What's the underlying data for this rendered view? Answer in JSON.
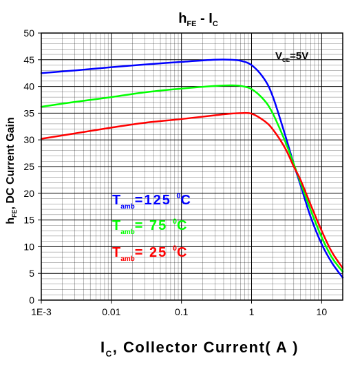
{
  "chart_data": {
    "type": "line",
    "title": {
      "main": "h",
      "main_sub": "FE",
      "sep": " - ",
      "second": "I",
      "second_sub": "C"
    },
    "xlabel": {
      "main": "I",
      "sub": "C",
      "rest": ",  Collector  Current( A )"
    },
    "ylabel": {
      "main": "h",
      "sub": "FE",
      "rest": ", DC Current Gain"
    },
    "x_scale": "log",
    "xlim": [
      0.001,
      20
    ],
    "ylim": [
      0,
      50
    ],
    "x_ticks": [
      0.001,
      0.01,
      0.1,
      1,
      10
    ],
    "x_tick_labels": [
      "1E-3",
      "0.01",
      "0.1",
      "1",
      "10"
    ],
    "y_ticks": [
      0,
      5,
      10,
      15,
      20,
      25,
      30,
      35,
      40,
      45,
      50
    ],
    "y_tick_labels": [
      "0",
      "5",
      "10",
      "15",
      "20",
      "25",
      "30",
      "35",
      "40",
      "45",
      "50"
    ],
    "grid": true,
    "annotation": {
      "main": "V",
      "sub": "CE",
      "rest": "=5V"
    },
    "legend_placement": "inside-left",
    "series": [
      {
        "name": "T_amb=125 0C",
        "label": {
          "main": "T",
          "sub": "amb",
          "mid": "=125 ",
          "sup": "0",
          "end": "C"
        },
        "color": "#0000ff",
        "x": [
          0.001,
          0.003,
          0.01,
          0.03,
          0.1,
          0.3,
          0.5,
          0.7,
          1,
          1.5,
          2,
          3,
          4,
          5,
          7,
          10,
          14,
          20
        ],
        "y": [
          42.5,
          43.0,
          43.6,
          44.1,
          44.6,
          45.0,
          45.0,
          44.8,
          44.0,
          41.5,
          38.2,
          31.0,
          25.5,
          21.5,
          15.5,
          10.5,
          7.0,
          4.2
        ]
      },
      {
        "name": "T_amb=75 0C",
        "label": {
          "main": "T",
          "sub": "amb",
          "mid": "= 75 ",
          "sup": "0",
          "end": "C"
        },
        "color": "#00ff00",
        "x": [
          0.001,
          0.003,
          0.01,
          0.03,
          0.1,
          0.3,
          0.5,
          0.7,
          1,
          1.5,
          2,
          3,
          4,
          5,
          7,
          10,
          14,
          20
        ],
        "y": [
          36.2,
          37.1,
          38.0,
          38.9,
          39.6,
          40.1,
          40.2,
          40.1,
          39.5,
          37.5,
          35.0,
          29.8,
          25.5,
          22.0,
          16.8,
          11.8,
          8.0,
          5.3
        ]
      },
      {
        "name": "T_amb=25 0C",
        "label": {
          "main": "T",
          "sub": "amb",
          "mid": "= 25 ",
          "sup": "0",
          "end": "C"
        },
        "color": "#ff0000",
        "x": [
          0.001,
          0.003,
          0.01,
          0.03,
          0.1,
          0.3,
          0.5,
          0.7,
          1,
          1.5,
          2,
          3,
          4,
          5,
          7,
          10,
          14,
          20
        ],
        "y": [
          30.2,
          31.2,
          32.3,
          33.2,
          33.9,
          34.6,
          34.9,
          35.0,
          34.9,
          33.6,
          32.0,
          28.5,
          25.0,
          22.5,
          17.8,
          13.0,
          9.0,
          6.0
        ]
      }
    ]
  }
}
